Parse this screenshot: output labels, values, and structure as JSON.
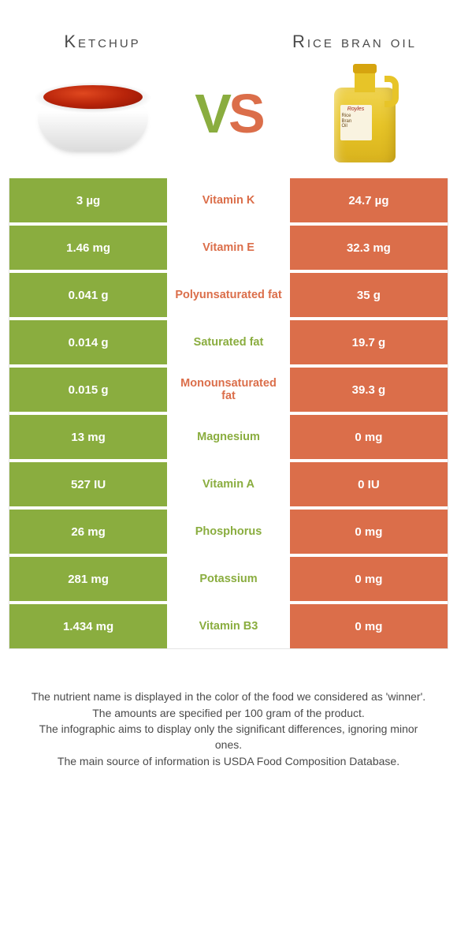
{
  "left_food": {
    "title": "Ketchup"
  },
  "right_food": {
    "title": "Rice bran oil"
  },
  "vs": {
    "v": "V",
    "s": "S"
  },
  "colors": {
    "green": "#8aad3f",
    "orange": "#db6e4a",
    "text": "#4a4a4a",
    "background": "#ffffff"
  },
  "bottle_label": {
    "brand": "Royles",
    "line1": "Rice",
    "line2": "Bran",
    "line3": "Oil"
  },
  "table": {
    "rows": [
      {
        "left": "3 µg",
        "label": "Vitamin K",
        "right": "24.7 µg",
        "winner": "right"
      },
      {
        "left": "1.46 mg",
        "label": "Vitamin E",
        "right": "32.3 mg",
        "winner": "right"
      },
      {
        "left": "0.041 g",
        "label": "Polyunsaturated fat",
        "right": "35 g",
        "winner": "right"
      },
      {
        "left": "0.014 g",
        "label": "Saturated fat",
        "right": "19.7 g",
        "winner": "left"
      },
      {
        "left": "0.015 g",
        "label": "Monounsaturated fat",
        "right": "39.3 g",
        "winner": "right"
      },
      {
        "left": "13 mg",
        "label": "Magnesium",
        "right": "0 mg",
        "winner": "left"
      },
      {
        "left": "527 IU",
        "label": "Vitamin A",
        "right": "0 IU",
        "winner": "left"
      },
      {
        "left": "26 mg",
        "label": "Phosphorus",
        "right": "0 mg",
        "winner": "left"
      },
      {
        "left": "281 mg",
        "label": "Potassium",
        "right": "0 mg",
        "winner": "left"
      },
      {
        "left": "1.434 mg",
        "label": "Vitamin B3",
        "right": "0 mg",
        "winner": "left"
      }
    ]
  },
  "footer": {
    "line1": "The nutrient name is displayed in the color of the food we considered as 'winner'.",
    "line2": "The amounts are specified per 100 gram of the product.",
    "line3": "The infographic aims to display only the significant differences, ignoring minor ones.",
    "line4": "The main source of information is USDA Food Composition Database."
  }
}
